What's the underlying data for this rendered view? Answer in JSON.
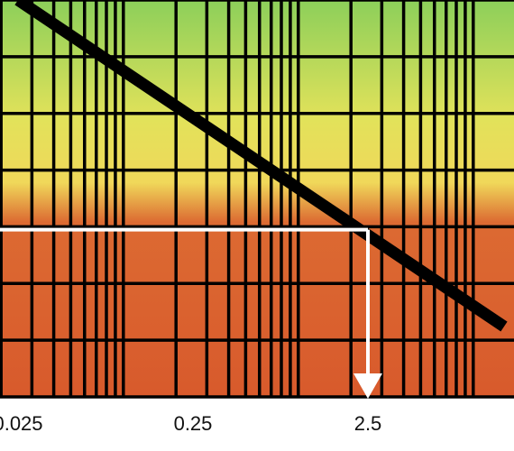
{
  "chart_data": {
    "type": "line",
    "x_scale": "log",
    "x_ticks": [
      0.025,
      0.25,
      2.5
    ],
    "x_tick_labels": [
      "0.025",
      "0.25",
      "2.5"
    ],
    "xlim": [
      0.025,
      15
    ],
    "y_scale": "linear",
    "ylim": [
      0,
      7
    ],
    "grid": true,
    "background_gradient": [
      "#8fcf5a",
      "#f2e35a",
      "#d95a2e"
    ],
    "colors": {
      "line": "#000000",
      "indicator": "#ffffff",
      "grid": "#000000"
    },
    "series": [
      {
        "x": [
          0.025,
          15
        ],
        "y": [
          7.0,
          1.24
        ],
        "color": "#000000"
      }
    ],
    "indicator": {
      "x": 2.5,
      "y": 2.95
    }
  }
}
